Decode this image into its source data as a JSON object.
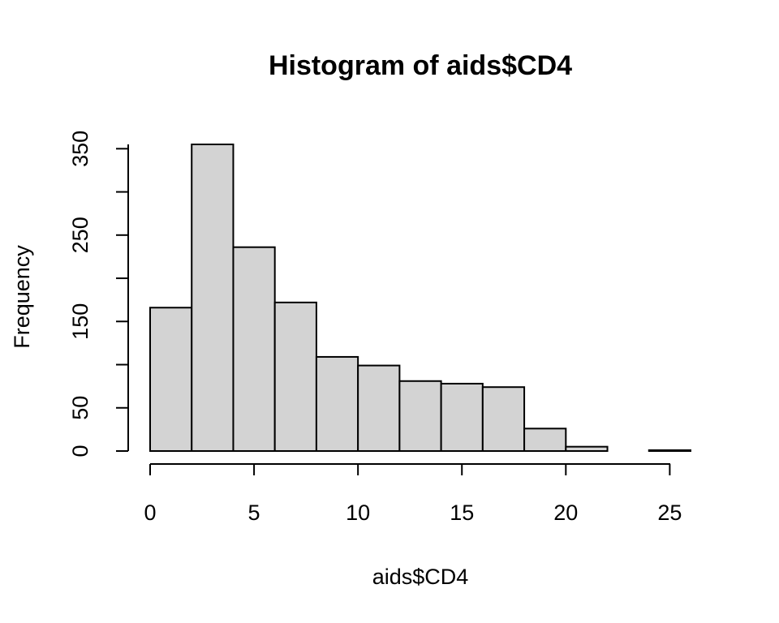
{
  "chart_data": {
    "type": "bar",
    "title": "Histogram of aids$CD4",
    "xlabel": "aids$CD4",
    "ylabel": "Frequency",
    "bin_edges": [
      0,
      2,
      4,
      6,
      8,
      10,
      12,
      14,
      16,
      18,
      20,
      22,
      24,
      26
    ],
    "values": [
      166,
      355,
      236,
      172,
      109,
      99,
      81,
      78,
      74,
      26,
      5,
      0,
      1
    ],
    "xlim": [
      0,
      26
    ],
    "ylim": [
      0,
      355
    ],
    "x_ticks": [
      0,
      5,
      10,
      15,
      20,
      25
    ],
    "y_ticks": [
      0,
      50,
      100,
      150,
      200,
      250,
      300,
      350
    ],
    "y_tick_labels": [
      "0",
      "50",
      "",
      "150",
      "",
      "250",
      "",
      "350"
    ],
    "x_tick_labels": [
      "0",
      "5",
      "10",
      "15",
      "20",
      "25"
    ],
    "bar_color": "#d3d3d3",
    "grid": false,
    "legend": "none"
  }
}
